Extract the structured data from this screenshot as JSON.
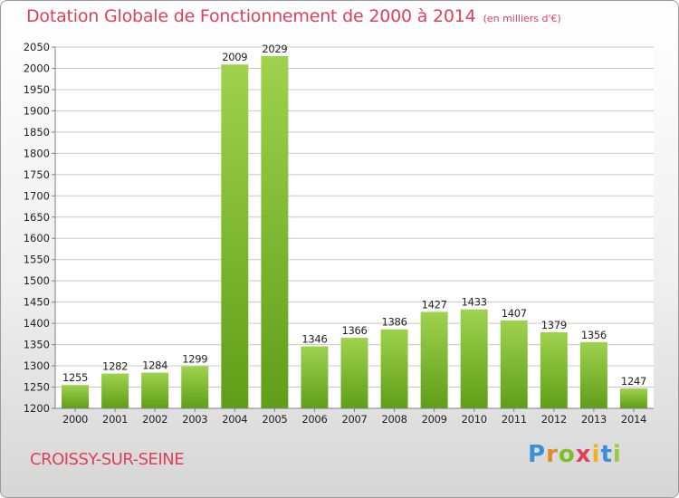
{
  "title": "Dotation Globale de Fonctionnement de 2000 à 2014",
  "subtitle": "(en milliers d'€)",
  "commune": "CROISSY-SUR-SEINE",
  "logo": "Proxiti",
  "colors": {
    "title": "#e0405a",
    "bar_light": "#9fd24e",
    "bar_dark": "#5f9e18",
    "grid": "#c8c8c8",
    "axis": "#808080"
  },
  "chart_data": {
    "type": "bar",
    "categories": [
      "2000",
      "2001",
      "2002",
      "2003",
      "2004",
      "2005",
      "2006",
      "2007",
      "2008",
      "2009",
      "2010",
      "2011",
      "2012",
      "2013",
      "2014"
    ],
    "values": [
      1255,
      1282,
      1284,
      1299,
      2009,
      2029,
      1346,
      1366,
      1386,
      1427,
      1433,
      1407,
      1379,
      1356,
      1247
    ],
    "ylim": [
      1200,
      2050
    ],
    "yticks": [
      1200,
      1250,
      1300,
      1350,
      1400,
      1450,
      1500,
      1550,
      1600,
      1650,
      1700,
      1750,
      1800,
      1850,
      1900,
      1950,
      2000,
      2050
    ],
    "grid": true,
    "legend": "none",
    "xlabel": "",
    "ylabel": ""
  }
}
